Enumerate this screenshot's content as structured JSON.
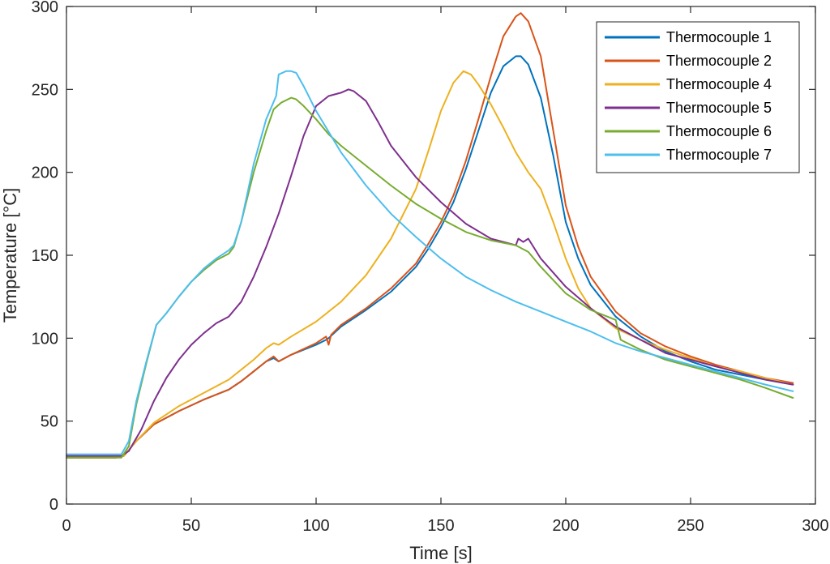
{
  "chart_data": {
    "type": "line",
    "title": "",
    "xlabel": "Time [s]",
    "ylabel": "Temperature [°C]",
    "xlim": [
      0,
      300
    ],
    "ylim": [
      0,
      300
    ],
    "xticks": [
      0,
      50,
      100,
      150,
      200,
      250,
      300
    ],
    "yticks": [
      0,
      50,
      100,
      150,
      200,
      250,
      300
    ],
    "grid": false,
    "legend_position": "top-right",
    "series": [
      {
        "name": "Thermocouple 1",
        "color": "#0072BD",
        "x": [
          0,
          20,
          23,
          28,
          35,
          45,
          55,
          65,
          70,
          75,
          80,
          83,
          85,
          90,
          100,
          104,
          105,
          110,
          120,
          130,
          140,
          145,
          150,
          155,
          160,
          165,
          170,
          175,
          180,
          182,
          185,
          190,
          195,
          200,
          205,
          210,
          220,
          230,
          240,
          250,
          260,
          270,
          280,
          291
        ],
        "y": [
          28,
          28,
          29,
          38,
          48,
          56,
          63,
          69,
          74,
          80,
          86,
          88,
          86,
          90,
          96,
          99,
          100,
          107,
          117,
          128,
          143,
          154,
          167,
          182,
          202,
          225,
          248,
          264,
          270,
          270,
          265,
          245,
          210,
          170,
          148,
          132,
          113,
          101,
          92,
          86,
          81,
          78,
          75,
          72
        ]
      },
      {
        "name": "Thermocouple 2",
        "color": "#D95319",
        "x": [
          0,
          20,
          23,
          28,
          35,
          45,
          55,
          65,
          70,
          75,
          80,
          83,
          85,
          90,
          100,
          104,
          105,
          106,
          110,
          120,
          130,
          140,
          145,
          150,
          155,
          160,
          165,
          170,
          175,
          180,
          182,
          185,
          190,
          195,
          200,
          205,
          210,
          220,
          230,
          240,
          250,
          260,
          270,
          280,
          291
        ],
        "y": [
          28,
          28,
          29,
          38,
          48,
          56,
          63,
          69,
          74,
          80,
          86,
          89,
          86,
          90,
          97,
          101,
          96,
          102,
          108,
          118,
          130,
          145,
          157,
          170,
          186,
          207,
          232,
          258,
          282,
          294,
          296,
          291,
          270,
          225,
          180,
          155,
          137,
          116,
          103,
          95,
          89,
          84,
          80,
          76,
          73
        ]
      },
      {
        "name": "Thermocouple 4",
        "color": "#EDB120",
        "x": [
          0,
          18,
          23,
          28,
          35,
          45,
          55,
          65,
          70,
          75,
          80,
          83,
          85,
          90,
          100,
          110,
          120,
          130,
          140,
          145,
          150,
          155,
          159,
          162,
          165,
          170,
          175,
          180,
          185,
          190,
          195,
          200,
          205,
          210,
          220,
          230,
          240,
          250,
          260,
          270,
          280,
          291
        ],
        "y": [
          28,
          28,
          29,
          38,
          49,
          59,
          67,
          75,
          81,
          87,
          94,
          97,
          96,
          101,
          110,
          122,
          138,
          160,
          190,
          213,
          237,
          254,
          261,
          259,
          253,
          241,
          227,
          212,
          200,
          190,
          170,
          148,
          130,
          118,
          106,
          99,
          93,
          88,
          83,
          80,
          76,
          72
        ]
      },
      {
        "name": "Thermocouple 5",
        "color": "#7E2F8E",
        "x": [
          0,
          22,
          25,
          30,
          35,
          40,
          45,
          50,
          55,
          60,
          65,
          70,
          75,
          80,
          85,
          90,
          95,
          100,
          105,
          110,
          113,
          115,
          120,
          125,
          130,
          140,
          150,
          160,
          170,
          180,
          181,
          183,
          185,
          190,
          200,
          210,
          220,
          230,
          240,
          250,
          260,
          270,
          280,
          291
        ],
        "y": [
          29,
          29,
          32,
          45,
          62,
          76,
          87,
          96,
          103,
          109,
          113,
          122,
          137,
          155,
          175,
          198,
          222,
          240,
          246,
          248,
          250,
          249,
          243,
          230,
          216,
          197,
          182,
          169,
          160,
          156,
          160,
          158,
          160,
          148,
          131,
          118,
          107,
          99,
          91,
          87,
          83,
          79,
          75,
          72
        ]
      },
      {
        "name": "Thermocouple 6",
        "color": "#77AC30",
        "x": [
          0,
          22,
          25,
          28,
          32,
          36,
          40,
          45,
          50,
          55,
          60,
          65,
          67,
          70,
          75,
          80,
          83,
          86,
          90,
          92,
          95,
          100,
          105,
          110,
          120,
          130,
          140,
          150,
          160,
          170,
          180,
          185,
          190,
          200,
          210,
          220,
          222,
          230,
          240,
          250,
          260,
          270,
          280,
          291
        ],
        "y": [
          28,
          28,
          35,
          60,
          85,
          108,
          115,
          125,
          134,
          141,
          147,
          151,
          155,
          170,
          200,
          225,
          238,
          242,
          245,
          244,
          240,
          232,
          223,
          216,
          204,
          192,
          181,
          172,
          164,
          159,
          156,
          152,
          143,
          127,
          117,
          111,
          99,
          93,
          87,
          83,
          79,
          75,
          70,
          64
        ]
      },
      {
        "name": "Thermocouple 7",
        "color": "#4DBEEE",
        "x": [
          0,
          22,
          25,
          28,
          32,
          36,
          40,
          45,
          50,
          55,
          60,
          65,
          67,
          70,
          75,
          80,
          84,
          85,
          88,
          90,
          92,
          95,
          100,
          110,
          120,
          130,
          140,
          150,
          160,
          170,
          180,
          190,
          200,
          210,
          220,
          230,
          240,
          250,
          260,
          270,
          280,
          291
        ],
        "y": [
          30,
          30,
          38,
          62,
          86,
          108,
          115,
          125,
          134,
          142,
          148,
          153,
          156,
          170,
          205,
          232,
          246,
          259,
          261,
          261,
          260,
          252,
          237,
          212,
          192,
          175,
          161,
          148,
          137,
          129,
          122,
          116,
          110,
          104,
          97,
          92,
          88,
          84,
          80,
          76,
          72,
          68
        ]
      }
    ]
  }
}
